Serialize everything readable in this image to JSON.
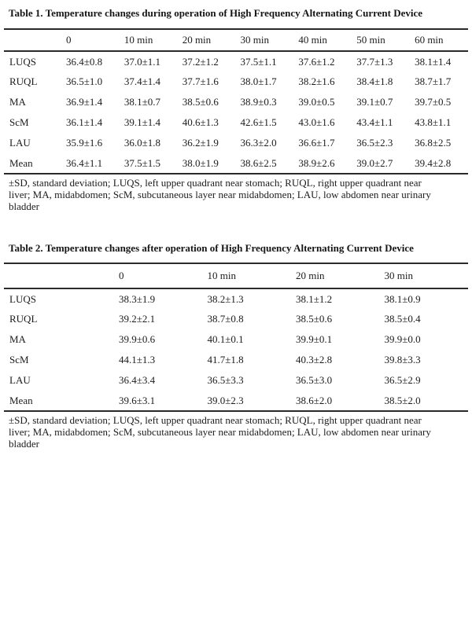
{
  "colors": {
    "background": "#ffffff",
    "text": "#1c1c1c",
    "rule": "#2a2a2a"
  },
  "tables": [
    {
      "title": "Table 1. Temperature changes during operation of High Frequency Alternating Current Device",
      "columns": [
        "",
        "0",
        "10 min",
        "20 min",
        "30 min",
        "40 min",
        "50 min",
        "60 min"
      ],
      "rows": [
        {
          "label": "LUQS",
          "values": [
            "36.4±0.8",
            "37.0±1.1",
            "37.2±1.2",
            "37.5±1.1",
            "37.6±1.2",
            "37.7±1.3",
            "38.1±1.4"
          ]
        },
        {
          "label": "RUQL",
          "values": [
            "36.5±1.0",
            "37.4±1.4",
            "37.7±1.6",
            "38.0±1.7",
            "38.2±1.6",
            "38.4±1.8",
            "38.7±1.7"
          ]
        },
        {
          "label": "MA",
          "values": [
            "36.9±1.4",
            "38.1±0.7",
            "38.5±0.6",
            "38.9±0.3",
            "39.0±0.5",
            "39.1±0.7",
            "39.7±0.5"
          ]
        },
        {
          "label": "ScM",
          "values": [
            "36.1±1.4",
            "39.1±1.4",
            "40.6±1.3",
            "42.6±1.5",
            "43.0±1.6",
            "43.4±1.1",
            "43.8±1.1"
          ]
        },
        {
          "label": "LAU",
          "values": [
            "35.9±1.6",
            "36.0±1.8",
            "36.2±1.9",
            "36.3±2.0",
            "36.6±1.7",
            "36.5±2.3",
            "36.8±2.5"
          ]
        },
        {
          "label": "Mean",
          "values": [
            "36.4±1.1",
            "37.5±1.5",
            "38.0±1.9",
            "38.6±2.5",
            "38.9±2.6",
            "39.0±2.7",
            "39.4±2.8"
          ]
        }
      ],
      "footnote_lines": [
        "±SD, standard deviation; LUQS, left upper quadrant near stomach; RUQL, right upper quadrant near",
        "liver; MA, midabdomen; ScM, subcutaneous layer near midabdomen; LAU, low abdomen near urinary",
        "bladder"
      ]
    },
    {
      "title": "Table 2. Temperature changes after operation of High Frequency Alternating Current Device",
      "columns": [
        "",
        "0",
        "10 min",
        "20 min",
        "30 min"
      ],
      "rows": [
        {
          "label": "LUQS",
          "values": [
            "38.3±1.9",
            "38.2±1.3",
            "38.1±1.2",
            "38.1±0.9"
          ]
        },
        {
          "label": "RUQL",
          "values": [
            "39.2±2.1",
            "38.7±0.8",
            "38.5±0.6",
            "38.5±0.4"
          ]
        },
        {
          "label": "MA",
          "values": [
            "39.9±0.6",
            "40.1±0.1",
            "39.9±0.1",
            "39.9±0.0"
          ]
        },
        {
          "label": "ScM",
          "values": [
            "44.1±1.3",
            "41.7±1.8",
            "40.3±2.8",
            "39.8±3.3"
          ]
        },
        {
          "label": "LAU",
          "values": [
            "36.4±3.4",
            "36.5±3.3",
            "36.5±3.0",
            "36.5±2.9"
          ]
        },
        {
          "label": "Mean",
          "values": [
            "39.6±3.1",
            "39.0±2.3",
            "38.6±2.0",
            "38.5±2.0"
          ]
        }
      ],
      "footnote_lines": [
        "±SD, standard deviation; LUQS, left upper quadrant near stomach; RUQL, right upper quadrant near",
        "liver; MA, midabdomen; ScM, subcutaneous layer near midabdomen; LAU, low abdomen near urinary",
        "bladder"
      ]
    }
  ]
}
